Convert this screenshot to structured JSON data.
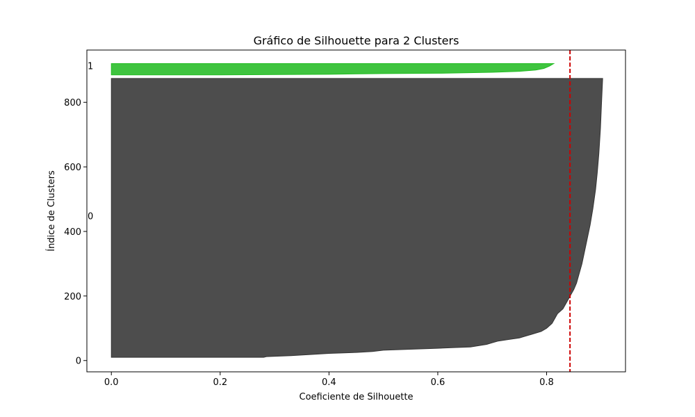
{
  "chart_data": {
    "type": "area",
    "title": "Gráfico de Silhouette para 2 Clusters",
    "xlabel": "Coeficiente de Silhouette",
    "ylabel": "Índice de Clusters",
    "xlim": [
      -0.045,
      0.945
    ],
    "ylim": [
      -35,
      962
    ],
    "xticks": [
      "0.0",
      "0.2",
      "0.4",
      "0.6",
      "0.8"
    ],
    "yticks": [
      "0",
      "200",
      "400",
      "600",
      "800"
    ],
    "grid": false,
    "average_silhouette": 0.843,
    "average_line_color": "#cc0000",
    "clusters": [
      {
        "label": "0",
        "label_y": 448,
        "color": "#333333",
        "points": [
          [
            0.28,
            10
          ],
          [
            0.285,
            12
          ],
          [
            0.33,
            15
          ],
          [
            0.36,
            18
          ],
          [
            0.4,
            22
          ],
          [
            0.45,
            25
          ],
          [
            0.48,
            28
          ],
          [
            0.5,
            32
          ],
          [
            0.55,
            35
          ],
          [
            0.6,
            38
          ],
          [
            0.63,
            40
          ],
          [
            0.66,
            42
          ],
          [
            0.69,
            50
          ],
          [
            0.7,
            55
          ],
          [
            0.71,
            60
          ],
          [
            0.73,
            65
          ],
          [
            0.75,
            70
          ],
          [
            0.76,
            75
          ],
          [
            0.77,
            80
          ],
          [
            0.78,
            85
          ],
          [
            0.79,
            90
          ],
          [
            0.8,
            100
          ],
          [
            0.81,
            115
          ],
          [
            0.815,
            130
          ],
          [
            0.82,
            145
          ],
          [
            0.83,
            160
          ],
          [
            0.835,
            175
          ],
          [
            0.84,
            190
          ],
          [
            0.845,
            205
          ],
          [
            0.85,
            220
          ],
          [
            0.855,
            240
          ],
          [
            0.86,
            270
          ],
          [
            0.865,
            300
          ],
          [
            0.87,
            340
          ],
          [
            0.875,
            380
          ],
          [
            0.88,
            420
          ],
          [
            0.885,
            470
          ],
          [
            0.89,
            530
          ],
          [
            0.893,
            580
          ],
          [
            0.896,
            640
          ],
          [
            0.899,
            720
          ],
          [
            0.901,
            800
          ],
          [
            0.903,
            874
          ]
        ]
      },
      {
        "label": "1",
        "label_y": 914,
        "color": "#22bb22",
        "points": [
          [
            0.2,
            885
          ],
          [
            0.4,
            887
          ],
          [
            0.5,
            889
          ],
          [
            0.6,
            890
          ],
          [
            0.7,
            893
          ],
          [
            0.75,
            896
          ],
          [
            0.78,
            900
          ],
          [
            0.795,
            905
          ],
          [
            0.805,
            912
          ],
          [
            0.813,
            920
          ]
        ]
      }
    ]
  }
}
